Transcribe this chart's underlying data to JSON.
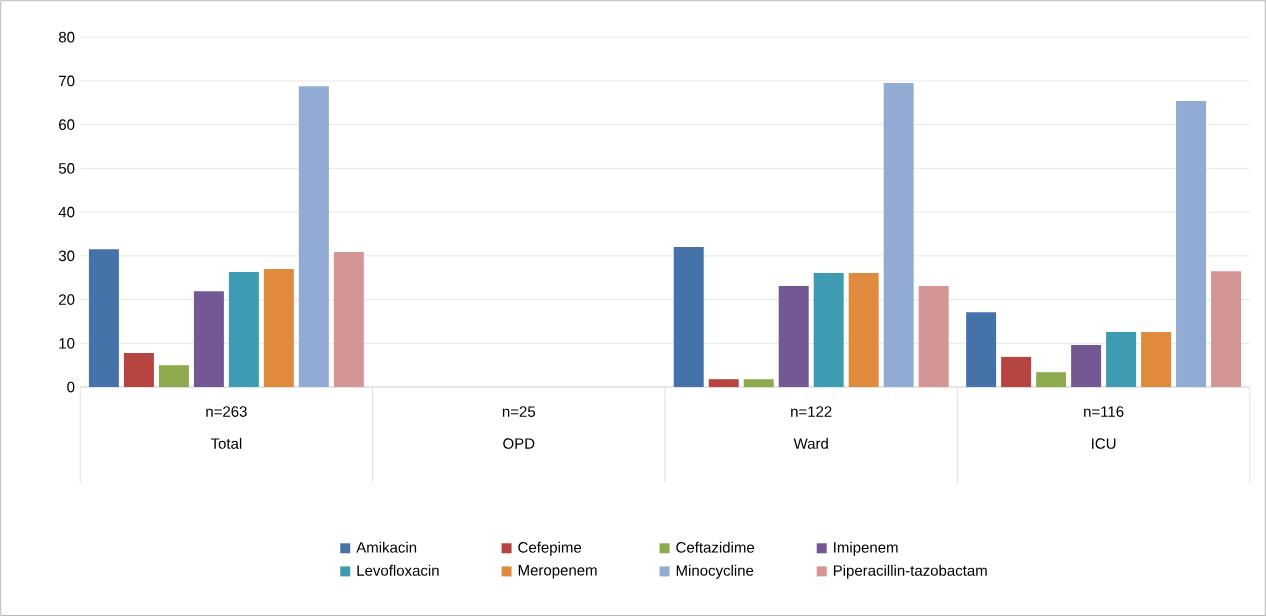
{
  "chart_data": {
    "type": "bar",
    "categories": [
      "Total",
      "OPD",
      "Ward",
      "ICU"
    ],
    "annotations": [
      "n=263",
      "n=25",
      "n=122",
      "n=116"
    ],
    "series": [
      {
        "name": "Amikacin",
        "color": "#4672aa",
        "values": [
          31.5,
          0,
          32.0,
          17.1
        ]
      },
      {
        "name": "Cefepime",
        "color": "#b64440",
        "values": [
          7.8,
          0,
          1.8,
          6.9
        ]
      },
      {
        "name": "Ceftazidime",
        "color": "#8daa4c",
        "values": [
          5.0,
          0,
          1.8,
          3.4
        ]
      },
      {
        "name": "Imipenem",
        "color": "#735893",
        "values": [
          21.9,
          0,
          23.1,
          9.6
        ]
      },
      {
        "name": "Levofloxacin",
        "color": "#3f9bb1",
        "values": [
          26.3,
          0,
          26.1,
          12.6
        ]
      },
      {
        "name": "Meropenem",
        "color": "#e08a3e",
        "values": [
          27.0,
          0,
          26.1,
          12.6
        ]
      },
      {
        "name": "Minocycline",
        "color": "#91abd4",
        "values": [
          68.8,
          0,
          69.5,
          65.4
        ]
      },
      {
        "name": "Piperacillin-tazobactam",
        "color": "#d49594",
        "values": [
          30.9,
          0,
          23.1,
          26.5
        ]
      }
    ],
    "ylim": [
      0,
      80
    ],
    "yticks": [
      0,
      10,
      20,
      30,
      40,
      50,
      60,
      70,
      80
    ],
    "grid": "y",
    "legend": "bottom"
  }
}
